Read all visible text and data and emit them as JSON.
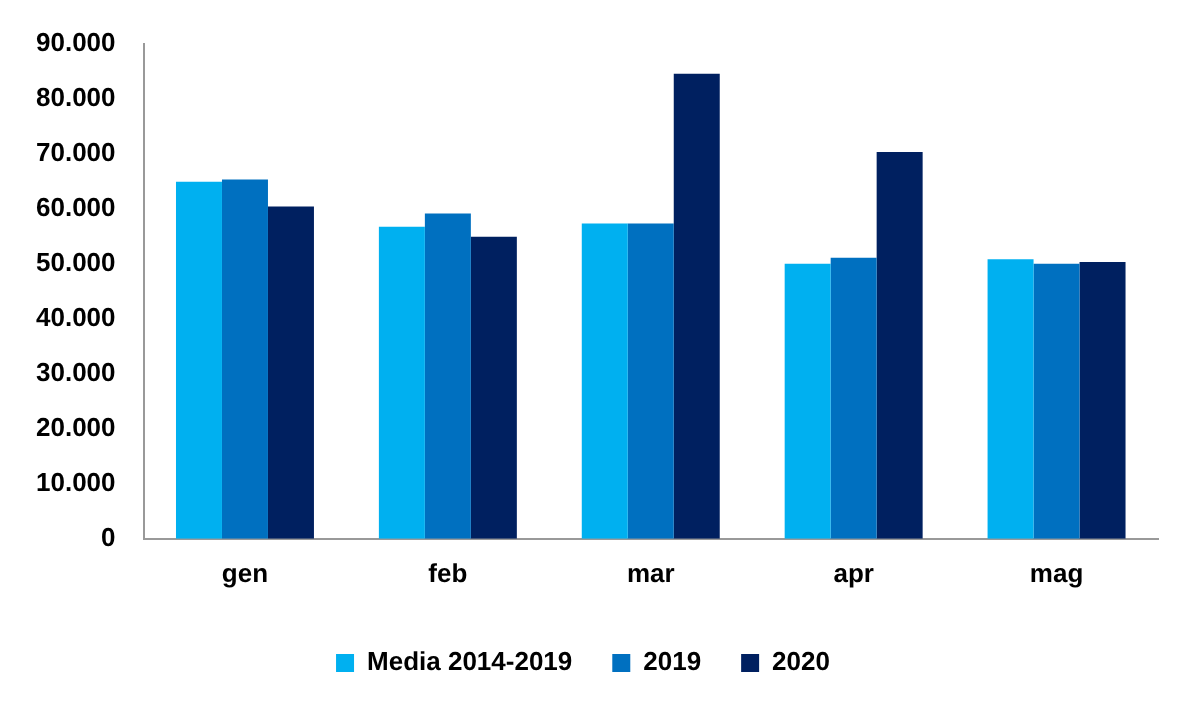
{
  "chart_data": {
    "type": "bar",
    "categories": [
      "gen",
      "feb",
      "mar",
      "apr",
      "mag"
    ],
    "series": [
      {
        "name": "Media 2014-2019",
        "color": "#00b0f0",
        "values": [
          64900,
          56700,
          57300,
          50000,
          50800
        ]
      },
      {
        "name": "2019",
        "color": "#0070c0",
        "values": [
          65300,
          59100,
          57300,
          51100,
          50000
        ]
      },
      {
        "name": "2020",
        "color": "#002060",
        "values": [
          60400,
          54900,
          84500,
          70300,
          50300
        ]
      }
    ],
    "ylim": [
      0,
      90000
    ],
    "yticks": [
      {
        "value": 0,
        "label": "0"
      },
      {
        "value": 10000,
        "label": "10.000"
      },
      {
        "value": 20000,
        "label": "20.000"
      },
      {
        "value": 30000,
        "label": "30.000"
      },
      {
        "value": 40000,
        "label": "40.000"
      },
      {
        "value": 50000,
        "label": "50.000"
      },
      {
        "value": 60000,
        "label": "60.000"
      },
      {
        "value": 70000,
        "label": "70.000"
      },
      {
        "value": 80000,
        "label": "80.000"
      },
      {
        "value": 90000,
        "label": "90.000"
      }
    ],
    "grid": false,
    "legend": "bottom"
  }
}
